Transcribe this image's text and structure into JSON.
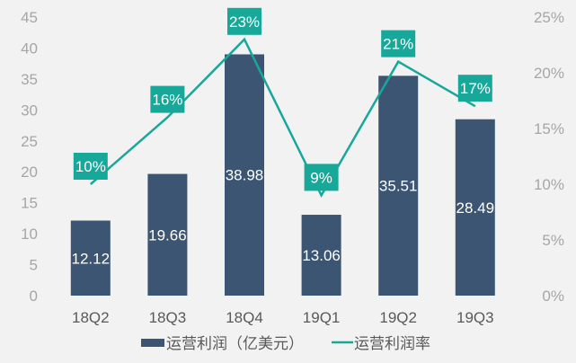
{
  "chart_data": {
    "type": "bar+line",
    "categories": [
      "18Q2",
      "18Q3",
      "18Q4",
      "19Q1",
      "19Q2",
      "19Q3"
    ],
    "series": [
      {
        "name": "运营利润（亿美元）",
        "type": "bar",
        "axis": "left",
        "values": [
          12.12,
          19.66,
          38.98,
          13.06,
          35.51,
          28.49
        ],
        "labels": [
          "12.12",
          "19.66",
          "38.98",
          "13.06",
          "35.51",
          "28.49"
        ],
        "color": "#3c5572"
      },
      {
        "name": "运营利润率",
        "type": "line",
        "axis": "right",
        "values": [
          10,
          16,
          23,
          9,
          21,
          17
        ],
        "labels": [
          "10%",
          "16%",
          "23%",
          "9%",
          "21%",
          "17%"
        ],
        "color": "#17a89a"
      }
    ],
    "left_axis": {
      "min": 0,
      "max": 45,
      "step": 5,
      "ticks": [
        "0",
        "5",
        "10",
        "15",
        "20",
        "25",
        "30",
        "35",
        "40",
        "45"
      ]
    },
    "right_axis": {
      "min": 0,
      "max": 25,
      "step": 5,
      "ticks": [
        "0%",
        "5%",
        "10%",
        "15%",
        "20%",
        "25%"
      ]
    },
    "grid": false,
    "legend": "bottom",
    "background": "#f2f2f2"
  }
}
